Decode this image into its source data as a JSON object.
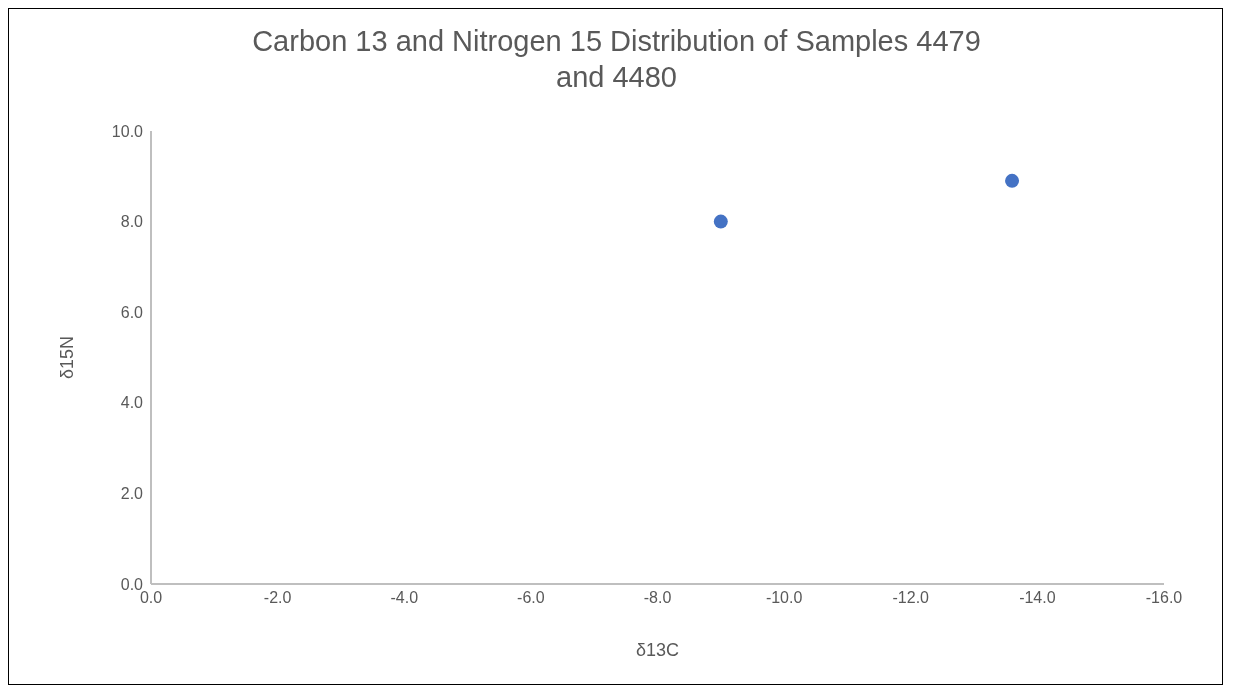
{
  "chart_data": {
    "type": "scatter",
    "title": "Carbon 13 and Nitrogen 15 Distribution of Samples 4479 and 4480",
    "xlabel": "δ13C",
    "ylabel": "δ15N",
    "x": [
      -9.0,
      -13.6
    ],
    "series": [
      {
        "color": "#4472c4",
        "values": [
          8.0,
          8.9
        ]
      }
    ],
    "xlim": [
      0,
      -16
    ],
    "xticks": [
      {
        "value": 0,
        "label": "0.0"
      },
      {
        "value": -2,
        "label": "-2.0"
      },
      {
        "value": -4,
        "label": "-4.0"
      },
      {
        "value": -6,
        "label": "-6.0"
      },
      {
        "value": -8,
        "label": "-8.0"
      },
      {
        "value": -10,
        "label": "-10.0"
      },
      {
        "value": -12,
        "label": "-12.0"
      },
      {
        "value": -14,
        "label": "-14.0"
      },
      {
        "value": -16,
        "label": "-16.0"
      }
    ],
    "ylim": [
      0,
      10
    ],
    "yticks": [
      {
        "value": 0,
        "label": "0.0"
      },
      {
        "value": 2,
        "label": "2.0"
      },
      {
        "value": 4,
        "label": "4.0"
      },
      {
        "value": 6,
        "label": "6.0"
      },
      {
        "value": 8,
        "label": "8.0"
      },
      {
        "value": 10,
        "label": "10.0"
      }
    ],
    "marker": "circle",
    "grid": false
  }
}
